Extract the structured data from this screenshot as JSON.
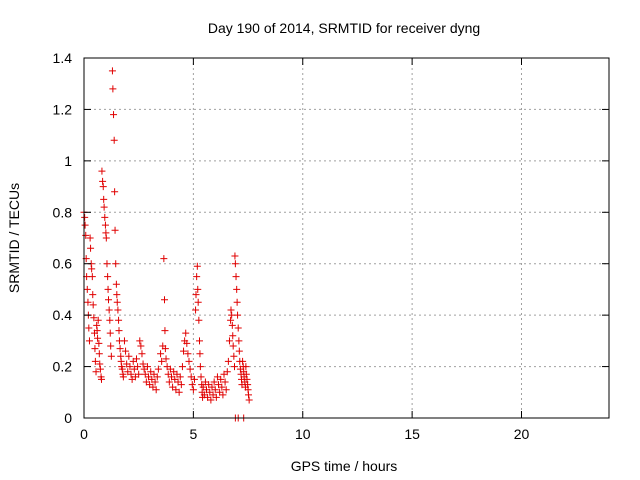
{
  "chart_data": {
    "type": "scatter",
    "title": "Day 190 of 2014, SRMTID for receiver dyng",
    "xlabel": "GPS time / hours",
    "ylabel": "SRMTID / TECUs",
    "xlim": [
      0,
      24
    ],
    "ylim": [
      0,
      1.4
    ],
    "xticks": [
      0,
      5,
      10,
      15,
      20
    ],
    "yticks": [
      0,
      0.2,
      0.4,
      0.6,
      0.8,
      1,
      1.2,
      1.4
    ],
    "ytick_labels": [
      "0",
      "0.2",
      "0.4",
      "0.6",
      "0.8",
      "1",
      "1.2",
      "1.4"
    ],
    "grid": true,
    "colors": {
      "series": "#e00000",
      "grid": "#a0a0a0",
      "axis": "#000000"
    },
    "series": [
      {
        "name": "SRMTID",
        "marker": "plus",
        "points": [
          [
            0.0,
            0.8
          ],
          [
            0.03,
            0.78
          ],
          [
            0.05,
            0.75
          ],
          [
            0.08,
            0.71
          ],
          [
            0.1,
            0.62
          ],
          [
            0.12,
            0.55
          ],
          [
            0.15,
            0.5
          ],
          [
            0.18,
            0.45
          ],
          [
            0.2,
            0.4
          ],
          [
            0.22,
            0.35
          ],
          [
            0.25,
            0.3
          ],
          [
            0.28,
            0.7
          ],
          [
            0.3,
            0.66
          ],
          [
            0.33,
            0.6
          ],
          [
            0.35,
            0.58
          ],
          [
            0.38,
            0.55
          ],
          [
            0.4,
            0.48
          ],
          [
            0.42,
            0.44
          ],
          [
            0.45,
            0.39
          ],
          [
            0.48,
            0.33
          ],
          [
            0.5,
            0.27
          ],
          [
            0.52,
            0.22
          ],
          [
            0.55,
            0.18
          ],
          [
            0.58,
            0.36
          ],
          [
            0.6,
            0.34
          ],
          [
            0.62,
            0.31
          ],
          [
            0.65,
            0.38
          ],
          [
            0.68,
            0.29
          ],
          [
            0.7,
            0.25
          ],
          [
            0.72,
            0.21
          ],
          [
            0.75,
            0.19
          ],
          [
            0.78,
            0.16
          ],
          [
            0.8,
            0.15
          ],
          [
            0.82,
            0.96
          ],
          [
            0.85,
            0.92
          ],
          [
            0.88,
            0.9
          ],
          [
            0.9,
            0.85
          ],
          [
            0.92,
            0.82
          ],
          [
            0.95,
            0.78
          ],
          [
            0.98,
            0.75
          ],
          [
            1.0,
            0.72
          ],
          [
            1.02,
            0.7
          ],
          [
            1.05,
            0.6
          ],
          [
            1.08,
            0.55
          ],
          [
            1.1,
            0.5
          ],
          [
            1.12,
            0.46
          ],
          [
            1.15,
            0.42
          ],
          [
            1.18,
            0.38
          ],
          [
            1.2,
            0.33
          ],
          [
            1.22,
            0.28
          ],
          [
            1.25,
            0.24
          ],
          [
            1.3,
            1.35
          ],
          [
            1.32,
            1.28
          ],
          [
            1.35,
            1.18
          ],
          [
            1.38,
            1.08
          ],
          [
            1.4,
            0.88
          ],
          [
            1.42,
            0.73
          ],
          [
            1.45,
            0.6
          ],
          [
            1.48,
            0.52
          ],
          [
            1.5,
            0.48
          ],
          [
            1.52,
            0.45
          ],
          [
            1.55,
            0.42
          ],
          [
            1.58,
            0.38
          ],
          [
            1.6,
            0.34
          ],
          [
            1.62,
            0.3
          ],
          [
            1.65,
            0.27
          ],
          [
            1.68,
            0.24
          ],
          [
            1.7,
            0.22
          ],
          [
            1.72,
            0.2
          ],
          [
            1.75,
            0.19
          ],
          [
            1.78,
            0.17
          ],
          [
            1.8,
            0.16
          ],
          [
            1.85,
            0.3
          ],
          [
            1.9,
            0.26
          ],
          [
            1.95,
            0.21
          ],
          [
            2.0,
            0.18
          ],
          [
            2.05,
            0.24
          ],
          [
            2.1,
            0.2
          ],
          [
            2.15,
            0.17
          ],
          [
            2.2,
            0.15
          ],
          [
            2.25,
            0.22
          ],
          [
            2.3,
            0.19
          ],
          [
            2.35,
            0.16
          ],
          [
            2.4,
            0.23
          ],
          [
            2.45,
            0.2
          ],
          [
            2.5,
            0.17
          ],
          [
            2.55,
            0.3
          ],
          [
            2.6,
            0.28
          ],
          [
            2.65,
            0.25
          ],
          [
            2.7,
            0.21
          ],
          [
            2.75,
            0.19
          ],
          [
            2.8,
            0.17
          ],
          [
            2.85,
            0.14
          ],
          [
            2.9,
            0.2
          ],
          [
            2.95,
            0.16
          ],
          [
            3.0,
            0.13
          ],
          [
            3.05,
            0.18
          ],
          [
            3.1,
            0.15
          ],
          [
            3.15,
            0.12
          ],
          [
            3.2,
            0.17
          ],
          [
            3.25,
            0.14
          ],
          [
            3.3,
            0.11
          ],
          [
            3.35,
            0.16
          ],
          [
            3.4,
            0.19
          ],
          [
            3.5,
            0.25
          ],
          [
            3.55,
            0.22
          ],
          [
            3.6,
            0.28
          ],
          [
            3.65,
            0.62
          ],
          [
            3.68,
            0.46
          ],
          [
            3.7,
            0.34
          ],
          [
            3.72,
            0.27
          ],
          [
            3.75,
            0.23
          ],
          [
            3.8,
            0.2
          ],
          [
            3.85,
            0.17
          ],
          [
            3.9,
            0.14
          ],
          [
            3.95,
            0.19
          ],
          [
            4.0,
            0.16
          ],
          [
            4.05,
            0.12
          ],
          [
            4.1,
            0.18
          ],
          [
            4.15,
            0.15
          ],
          [
            4.2,
            0.11
          ],
          [
            4.25,
            0.17
          ],
          [
            4.3,
            0.14
          ],
          [
            4.35,
            0.1
          ],
          [
            4.4,
            0.16
          ],
          [
            4.45,
            0.13
          ],
          [
            4.5,
            0.2
          ],
          [
            4.55,
            0.26
          ],
          [
            4.6,
            0.3
          ],
          [
            4.65,
            0.33
          ],
          [
            4.7,
            0.29
          ],
          [
            4.75,
            0.25
          ],
          [
            4.8,
            0.22
          ],
          [
            4.85,
            0.19
          ],
          [
            4.9,
            0.16
          ],
          [
            4.95,
            0.13
          ],
          [
            5.0,
            0.11
          ],
          [
            5.05,
            0.15
          ],
          [
            5.1,
            0.42
          ],
          [
            5.12,
            0.48
          ],
          [
            5.15,
            0.55
          ],
          [
            5.18,
            0.59
          ],
          [
            5.2,
            0.5
          ],
          [
            5.22,
            0.45
          ],
          [
            5.25,
            0.38
          ],
          [
            5.28,
            0.3
          ],
          [
            5.3,
            0.25
          ],
          [
            5.32,
            0.2
          ],
          [
            5.35,
            0.16
          ],
          [
            5.38,
            0.13
          ],
          [
            5.4,
            0.1
          ],
          [
            5.42,
            0.08
          ],
          [
            5.45,
            0.12
          ],
          [
            5.5,
            0.09
          ],
          [
            5.55,
            0.14
          ],
          [
            5.6,
            0.11
          ],
          [
            5.65,
            0.08
          ],
          [
            5.7,
            0.13
          ],
          [
            5.75,
            0.1
          ],
          [
            5.8,
            0.07
          ],
          [
            5.85,
            0.12
          ],
          [
            5.9,
            0.09
          ],
          [
            5.95,
            0.14
          ],
          [
            6.0,
            0.11
          ],
          [
            6.05,
            0.08
          ],
          [
            6.1,
            0.16
          ],
          [
            6.15,
            0.13
          ],
          [
            6.2,
            0.1
          ],
          [
            6.25,
            0.15
          ],
          [
            6.3,
            0.12
          ],
          [
            6.35,
            0.09
          ],
          [
            6.4,
            0.17
          ],
          [
            6.45,
            0.14
          ],
          [
            6.5,
            0.11
          ],
          [
            6.55,
            0.18
          ],
          [
            6.6,
            0.22
          ],
          [
            6.65,
            0.3
          ],
          [
            6.7,
            0.38
          ],
          [
            6.72,
            0.42
          ],
          [
            6.75,
            0.4
          ],
          [
            6.78,
            0.36
          ],
          [
            6.8,
            0.32
          ],
          [
            6.82,
            0.28
          ],
          [
            6.85,
            0.24
          ],
          [
            6.88,
            0.2
          ],
          [
            6.9,
            0.63
          ],
          [
            6.92,
            0.6
          ],
          [
            6.95,
            0.55
          ],
          [
            6.98,
            0.5
          ],
          [
            7.0,
            0.45
          ],
          [
            7.02,
            0.4
          ],
          [
            7.05,
            0.35
          ],
          [
            7.08,
            0.3
          ],
          [
            7.1,
            0.26
          ],
          [
            7.12,
            0.22
          ],
          [
            7.15,
            0.19
          ],
          [
            7.18,
            0.17
          ],
          [
            7.2,
            0.15
          ],
          [
            7.22,
            0.13
          ],
          [
            7.25,
            0.22
          ],
          [
            7.28,
            0.2
          ],
          [
            7.3,
            0.18
          ],
          [
            7.32,
            0.16
          ],
          [
            7.35,
            0.14
          ],
          [
            7.38,
            0.12
          ],
          [
            7.4,
            0.2
          ],
          [
            7.42,
            0.17
          ],
          [
            7.45,
            0.15
          ],
          [
            7.48,
            0.13
          ],
          [
            7.5,
            0.11
          ],
          [
            7.52,
            0.09
          ],
          [
            7.55,
            0.07
          ],
          [
            6.92,
            0.0
          ],
          [
            7.05,
            0.0
          ],
          [
            7.3,
            0.0
          ]
        ]
      }
    ]
  }
}
